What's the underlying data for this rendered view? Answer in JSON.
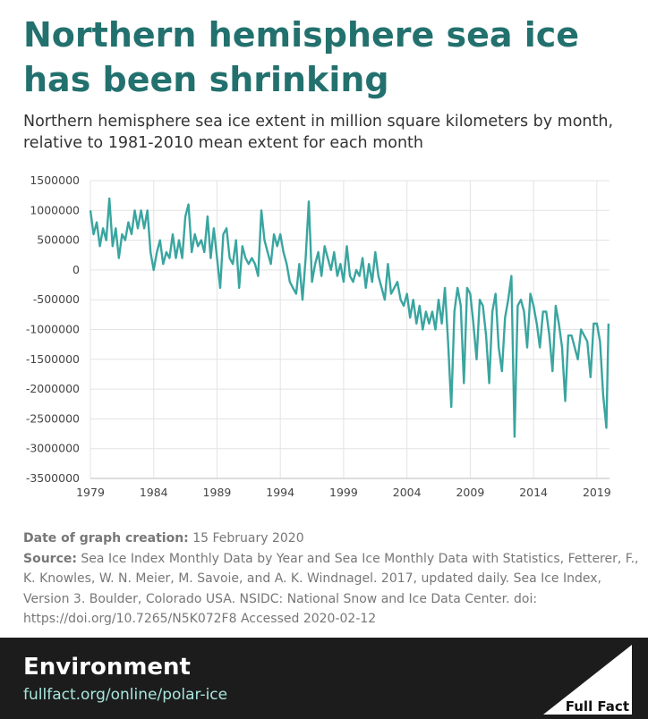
{
  "chart_data": {
    "type": "line",
    "title": "Northern hemisphere sea ice has been shrinking",
    "subtitle": "Northern hemisphere sea ice extent in million square kilometers by month, relative to 1981-2010 mean extent for each month",
    "xlim": [
      1979,
      2020
    ],
    "xticks": [
      1979,
      1984,
      1989,
      1994,
      1999,
      2004,
      2009,
      2014,
      2019
    ],
    "ylim": [
      -3500000,
      1500000
    ],
    "yticks": [
      1500000,
      1000000,
      500000,
      0,
      -500000,
      -1000000,
      -1500000,
      -2000000,
      -2500000,
      -3000000,
      -3500000
    ],
    "grid": true,
    "series": [
      {
        "color": "#3aa5a0",
        "x": [
          1979,
          1979.25,
          1979.5,
          1979.75,
          1980,
          1980.25,
          1980.5,
          1980.75,
          1981,
          1981.25,
          1981.5,
          1981.75,
          1982,
          1982.25,
          1982.5,
          1982.75,
          1983,
          1983.25,
          1983.5,
          1983.75,
          1984,
          1984.25,
          1984.5,
          1984.75,
          1985,
          1985.25,
          1985.5,
          1985.75,
          1986,
          1986.25,
          1986.5,
          1986.75,
          1987,
          1987.25,
          1987.5,
          1987.75,
          1988,
          1988.25,
          1988.5,
          1988.75,
          1989,
          1989.25,
          1989.5,
          1989.75,
          1990,
          1990.25,
          1990.5,
          1990.75,
          1991,
          1991.25,
          1991.5,
          1991.75,
          1992,
          1992.25,
          1992.5,
          1992.75,
          1993,
          1993.25,
          1993.5,
          1993.75,
          1994,
          1994.25,
          1994.5,
          1994.75,
          1995,
          1995.25,
          1995.5,
          1995.75,
          1996,
          1996.25,
          1996.5,
          1996.75,
          1997,
          1997.25,
          1997.5,
          1997.75,
          1998,
          1998.25,
          1998.5,
          1998.75,
          1999,
          1999.25,
          1999.5,
          1999.75,
          2000,
          2000.25,
          2000.5,
          2000.75,
          2001,
          2001.25,
          2001.5,
          2001.75,
          2002,
          2002.25,
          2002.5,
          2002.75,
          2003,
          2003.25,
          2003.5,
          2003.75,
          2004,
          2004.25,
          2004.5,
          2004.75,
          2005,
          2005.25,
          2005.5,
          2005.75,
          2006,
          2006.25,
          2006.5,
          2006.75,
          2007,
          2007.25,
          2007.5,
          2007.75,
          2008,
          2008.25,
          2008.5,
          2008.75,
          2009,
          2009.25,
          2009.5,
          2009.75,
          2010,
          2010.25,
          2010.5,
          2010.75,
          2011,
          2011.25,
          2011.5,
          2011.75,
          2012,
          2012.25,
          2012.5,
          2012.75,
          2013,
          2013.25,
          2013.5,
          2013.75,
          2014,
          2014.25,
          2014.5,
          2014.75,
          2015,
          2015.25,
          2015.5,
          2015.75,
          2016,
          2016.25,
          2016.5,
          2016.75,
          2017,
          2017.25,
          2017.5,
          2017.75,
          2018,
          2018.25,
          2018.5,
          2018.75,
          2019,
          2019.25,
          2019.5,
          2019.75,
          2019.92
        ],
        "values": [
          1000000,
          600000,
          800000,
          400000,
          700000,
          500000,
          1200000,
          400000,
          700000,
          200000,
          600000,
          500000,
          800000,
          600000,
          1000000,
          700000,
          1000000,
          700000,
          1000000,
          300000,
          0,
          300000,
          500000,
          100000,
          300000,
          200000,
          600000,
          200000,
          500000,
          200000,
          900000,
          1100000,
          300000,
          600000,
          400000,
          500000,
          300000,
          900000,
          200000,
          700000,
          200000,
          -300000,
          600000,
          700000,
          200000,
          100000,
          500000,
          -300000,
          400000,
          200000,
          100000,
          200000,
          100000,
          -100000,
          1000000,
          500000,
          300000,
          100000,
          600000,
          400000,
          600000,
          300000,
          100000,
          -200000,
          -300000,
          -400000,
          100000,
          -500000,
          200000,
          1150000,
          -200000,
          100000,
          300000,
          -100000,
          400000,
          200000,
          0,
          300000,
          -100000,
          100000,
          -200000,
          400000,
          -100000,
          -200000,
          0,
          -100000,
          200000,
          -300000,
          100000,
          -200000,
          300000,
          -100000,
          -300000,
          -500000,
          100000,
          -400000,
          -300000,
          -200000,
          -500000,
          -600000,
          -400000,
          -800000,
          -500000,
          -900000,
          -600000,
          -1000000,
          -700000,
          -900000,
          -700000,
          -1000000,
          -500000,
          -900000,
          -300000,
          -1200000,
          -2300000,
          -700000,
          -300000,
          -600000,
          -1900000,
          -300000,
          -400000,
          -900000,
          -1500000,
          -500000,
          -600000,
          -1100000,
          -1900000,
          -700000,
          -400000,
          -1300000,
          -1700000,
          -800000,
          -500000,
          -100000,
          -2800000,
          -600000,
          -500000,
          -700000,
          -1300000,
          -400000,
          -600000,
          -900000,
          -1300000,
          -700000,
          -700000,
          -1100000,
          -1700000,
          -600000,
          -900000,
          -1300000,
          -2200000,
          -1100000,
          -1100000,
          -1300000,
          -1500000,
          -1000000,
          -1100000,
          -1200000,
          -1800000,
          -900000,
          -900000,
          -1200000,
          -2100000,
          -2650000,
          -900000
        ]
      }
    ]
  },
  "notes": {
    "date_label": "Date of graph creation:",
    "date": "15 February 2020",
    "source_label": "Source:",
    "source": "Sea Ice Index Monthly Data by Year and Sea Ice Monthly Data with Statistics, Fetterer, F., K. Knowles, W. N. Meier, M. Savoie, and A. K. Windnagel. 2017, updated daily. Sea Ice Index, Version 3. Boulder, Colorado USA. NSIDC: National Snow and Ice Data Center. doi: https://doi.org/10.7265/N5K072F8 Accessed 2020-02-12"
  },
  "footer": {
    "section": "Environment",
    "url": "fullfact.org/online/polar-ice",
    "logo": "Full Fact"
  }
}
